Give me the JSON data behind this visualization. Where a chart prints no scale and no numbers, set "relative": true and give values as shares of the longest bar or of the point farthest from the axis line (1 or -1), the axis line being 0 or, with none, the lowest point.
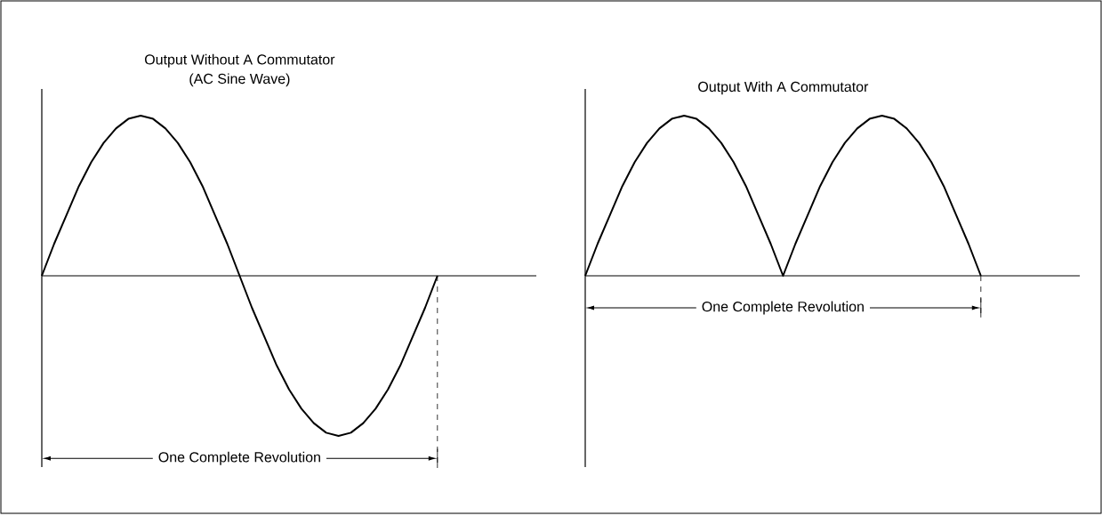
{
  "chart_data": [
    {
      "type": "line",
      "relative": true,
      "title": "Output Without A Commutator",
      "subtitle": "(AC Sine Wave)",
      "color": "#000000",
      "categories": [
        null,
        null,
        null,
        null,
        null,
        null,
        null,
        null,
        null,
        null,
        null,
        null,
        null,
        null,
        null,
        null,
        null,
        null,
        null,
        null,
        null,
        null,
        null,
        null,
        null,
        null,
        null,
        null,
        null,
        null,
        null,
        null,
        null,
        null,
        null,
        null,
        null,
        null,
        null,
        null,
        null
      ],
      "values": [
        0,
        0.2,
        0.38,
        0.56,
        0.71,
        0.83,
        0.92,
        0.98,
        1,
        0.98,
        0.92,
        0.83,
        0.71,
        0.56,
        0.38,
        0.2,
        0,
        -0.2,
        -0.38,
        -0.56,
        -0.71,
        -0.83,
        -0.92,
        -0.98,
        -1,
        -0.98,
        -0.92,
        -0.83,
        -0.71,
        -0.56,
        -0.38,
        -0.2,
        0,
        null,
        null,
        null,
        null,
        null,
        null,
        null,
        null
      ],
      "annotations": [
        "One Complete Revolution"
      ]
    },
    {
      "type": "line",
      "relative": true,
      "title": "Output With A Commutator",
      "color": "#000000",
      "categories": [
        null,
        null,
        null,
        null,
        null,
        null,
        null,
        null,
        null,
        null,
        null,
        null,
        null,
        null,
        null,
        null,
        null,
        null,
        null,
        null,
        null,
        null,
        null,
        null,
        null,
        null,
        null,
        null,
        null,
        null,
        null,
        null,
        null,
        null,
        null,
        null,
        null,
        null,
        null,
        null,
        null
      ],
      "values": [
        0,
        0.2,
        0.38,
        0.56,
        0.71,
        0.83,
        0.92,
        0.98,
        1,
        0.98,
        0.92,
        0.83,
        0.71,
        0.56,
        0.38,
        0.2,
        0,
        0.2,
        0.38,
        0.56,
        0.71,
        0.83,
        0.92,
        0.98,
        1,
        0.98,
        0.92,
        0.83,
        0.71,
        0.56,
        0.38,
        0.2,
        0,
        null,
        null,
        null,
        null,
        null,
        null,
        null,
        null
      ],
      "annotations": [
        "One Complete Revolution"
      ]
    }
  ]
}
